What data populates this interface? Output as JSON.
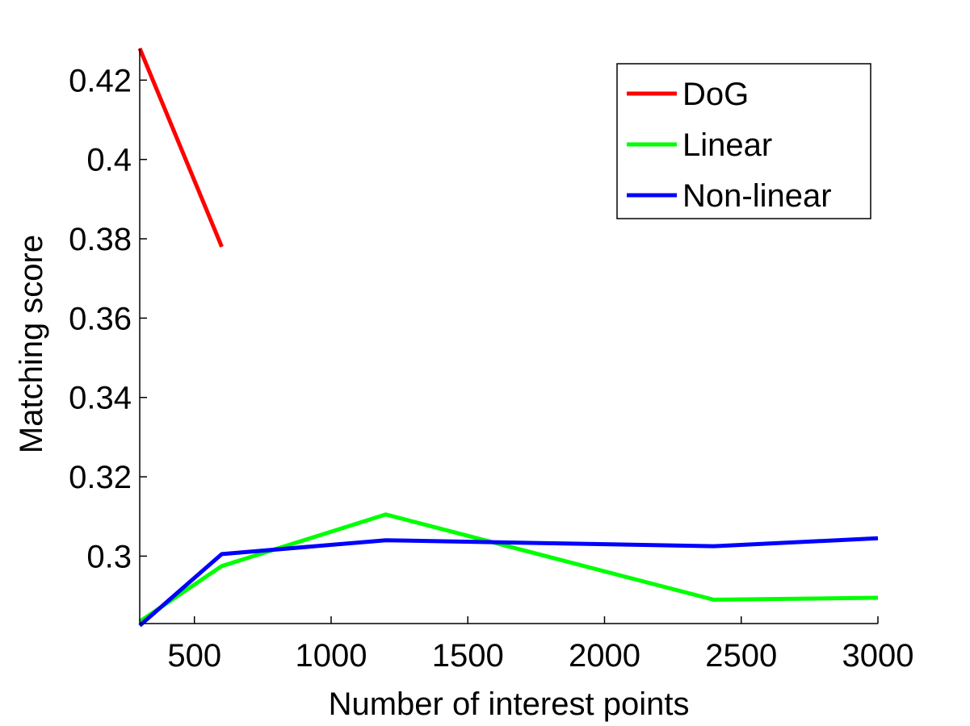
{
  "chart_data": {
    "type": "line",
    "title": "",
    "xlabel": "Number of interest points",
    "ylabel": "Matching score",
    "xlim": [
      300,
      3000
    ],
    "ylim": [
      0.283,
      0.428
    ],
    "xticks": [
      500,
      1000,
      1500,
      2000,
      2500,
      3000
    ],
    "xtick_labels": [
      "500",
      "1000",
      "1500",
      "2000",
      "2500",
      "3000"
    ],
    "yticks": [
      0.3,
      0.32,
      0.34,
      0.36,
      0.38,
      0.4,
      0.42
    ],
    "ytick_labels": [
      "0.3",
      "0.32",
      "0.34",
      "0.36",
      "0.38",
      "0.4",
      "0.42"
    ],
    "grid": false,
    "legend_position": "top-right",
    "series": [
      {
        "name": "DoG",
        "color": "#ff0000",
        "x": [
          300,
          600
        ],
        "y": [
          0.428,
          0.378
        ]
      },
      {
        "name": "Linear",
        "color": "#00ff00",
        "x": [
          300,
          600,
          1200,
          2400,
          3000
        ],
        "y": [
          0.2835,
          0.2975,
          0.3105,
          0.289,
          0.2895
        ]
      },
      {
        "name": "Non-linear",
        "color": "#0000ff",
        "x": [
          300,
          600,
          1200,
          2400,
          3000
        ],
        "y": [
          0.2825,
          0.3005,
          0.304,
          0.3025,
          0.3045
        ]
      }
    ]
  }
}
